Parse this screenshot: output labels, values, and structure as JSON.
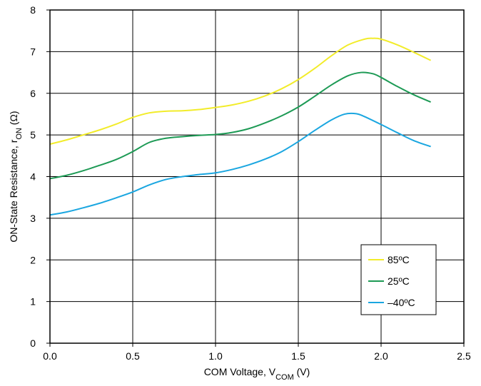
{
  "chart_data": {
    "type": "line",
    "title": "",
    "xlabel": "COM Voltage, V",
    "xlabel_sub": "COM",
    "xlabel_unit": " (V)",
    "ylabel": "ON-State Resistance, r",
    "ylabel_sub": "ON",
    "ylabel_unit": " (Ω)",
    "xlim": [
      0.0,
      2.5
    ],
    "ylim": [
      0,
      8
    ],
    "x_ticks": [
      "0.0",
      "0.5",
      "1.0",
      "1.5",
      "2.0",
      "2.5"
    ],
    "y_ticks": [
      "0",
      "1",
      "2",
      "3",
      "4",
      "5",
      "6",
      "7",
      "8"
    ],
    "grid": true,
    "legend_position": "bottom-right",
    "series": [
      {
        "name": "85ºC",
        "color": "#f2ec2a",
        "x": [
          0.0,
          0.1,
          0.2,
          0.3,
          0.4,
          0.5,
          0.6,
          0.7,
          0.8,
          0.9,
          1.0,
          1.1,
          1.2,
          1.3,
          1.4,
          1.5,
          1.6,
          1.7,
          1.8,
          1.9,
          1.95,
          2.0,
          2.1,
          2.2,
          2.3
        ],
        "y": [
          4.78,
          4.88,
          5.0,
          5.12,
          5.26,
          5.42,
          5.53,
          5.57,
          5.58,
          5.61,
          5.66,
          5.72,
          5.81,
          5.94,
          6.11,
          6.33,
          6.6,
          6.9,
          7.16,
          7.3,
          7.32,
          7.3,
          7.16,
          6.98,
          6.79
        ]
      },
      {
        "name": "25ºC",
        "color": "#1d9a55",
        "x": [
          0.0,
          0.1,
          0.2,
          0.3,
          0.4,
          0.5,
          0.6,
          0.7,
          0.8,
          0.9,
          1.0,
          1.1,
          1.2,
          1.3,
          1.4,
          1.5,
          1.6,
          1.7,
          1.8,
          1.88,
          1.95,
          2.0,
          2.1,
          2.2,
          2.3
        ],
        "y": [
          3.95,
          4.03,
          4.14,
          4.27,
          4.41,
          4.6,
          4.82,
          4.92,
          4.96,
          4.99,
          5.01,
          5.06,
          5.15,
          5.29,
          5.46,
          5.67,
          5.93,
          6.2,
          6.42,
          6.5,
          6.47,
          6.38,
          6.16,
          5.96,
          5.79
        ]
      },
      {
        "name": "–40ºC",
        "color": "#1aa6e0",
        "x": [
          0.0,
          0.1,
          0.2,
          0.3,
          0.4,
          0.5,
          0.6,
          0.7,
          0.8,
          0.9,
          1.0,
          1.1,
          1.2,
          1.3,
          1.4,
          1.5,
          1.6,
          1.7,
          1.78,
          1.85,
          1.9,
          2.0,
          2.1,
          2.2,
          2.3
        ],
        "y": [
          3.08,
          3.15,
          3.25,
          3.36,
          3.49,
          3.63,
          3.8,
          3.93,
          4.0,
          4.05,
          4.09,
          4.17,
          4.28,
          4.42,
          4.6,
          4.84,
          5.11,
          5.36,
          5.5,
          5.51,
          5.44,
          5.25,
          5.05,
          4.86,
          4.72
        ]
      }
    ]
  }
}
